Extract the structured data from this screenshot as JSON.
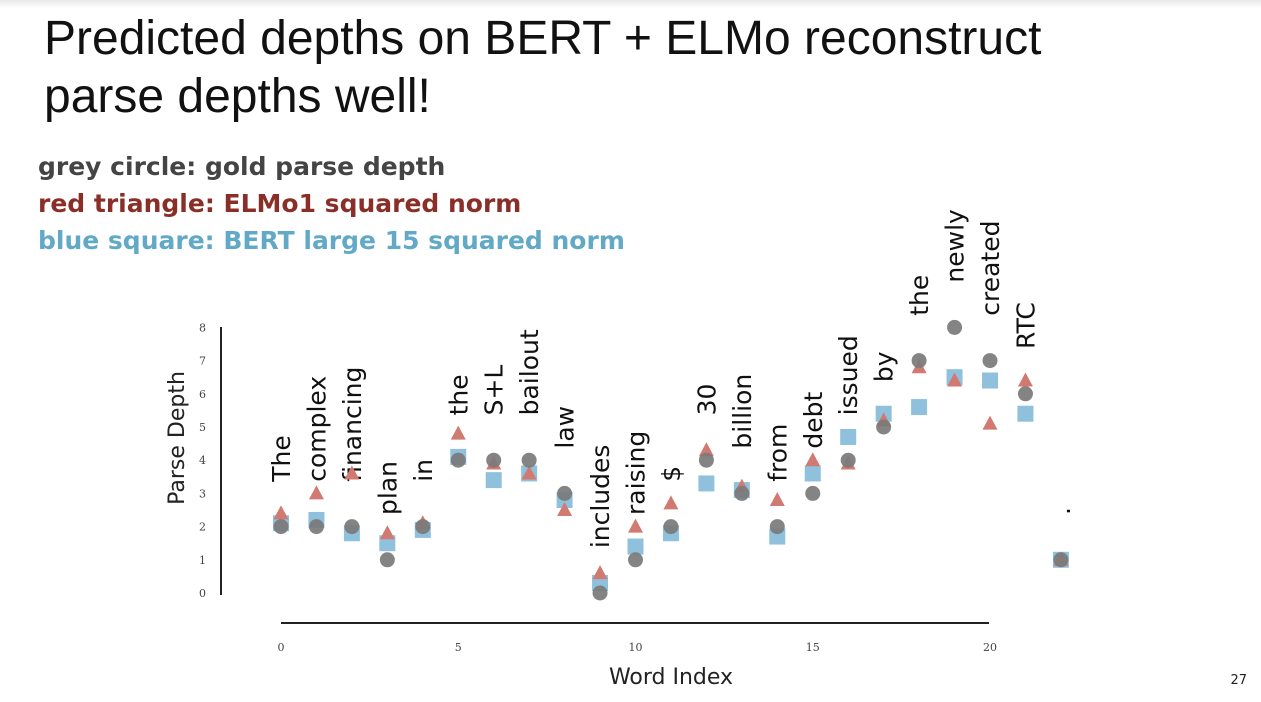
{
  "slide": {
    "title": "Predicted depths on BERT + ELMo reconstruct parse depths well!",
    "legend": {
      "grey": "grey circle: gold parse depth",
      "red": "red triangle: ELMo1 squared norm",
      "blue": "blue square: BERT large 15 squared norm"
    },
    "page_number": "27"
  },
  "colors": {
    "gold": "#7a7a7a",
    "elmo": "#d07a72",
    "bert": "#8fc0dc"
  },
  "chart_data": {
    "type": "scatter",
    "xlabel": "Word Index",
    "ylabel": "Parse Depth",
    "xticks": [
      0,
      5,
      10,
      15,
      20
    ],
    "yticks": [
      0,
      1,
      2,
      3,
      4,
      5,
      6,
      7,
      8
    ],
    "xlim": [
      0,
      22
    ],
    "ylim": [
      0,
      8
    ],
    "words": [
      "The",
      "complex",
      "financing",
      "plan",
      "in",
      "the",
      "S+L",
      "bailout",
      "law",
      "includes",
      "raising",
      "$",
      "30",
      "billion",
      "from",
      "debt",
      "issued",
      "by",
      "the",
      "newly",
      "created",
      "RTC",
      "."
    ],
    "series": [
      {
        "name": "gold parse depth",
        "marker": "circle",
        "values": [
          2,
          2,
          2,
          1,
          2,
          4,
          4,
          4,
          3,
          0,
          1,
          2,
          4,
          3,
          2,
          3,
          4,
          5,
          7,
          8,
          7,
          6,
          1
        ]
      },
      {
        "name": "ELMo1 squared norm",
        "marker": "triangle",
        "values": [
          2.4,
          3.0,
          3.6,
          1.8,
          2.1,
          4.8,
          3.9,
          3.6,
          2.5,
          0.6,
          2.0,
          2.7,
          4.3,
          3.2,
          2.8,
          4.0,
          3.9,
          5.2,
          6.8,
          6.4,
          5.1,
          6.4,
          1.0
        ]
      },
      {
        "name": "BERT large 15 squared norm",
        "marker": "square",
        "values": [
          2.1,
          2.2,
          1.8,
          1.5,
          1.9,
          4.1,
          3.4,
          3.6,
          2.8,
          0.3,
          1.4,
          1.8,
          3.3,
          3.1,
          1.7,
          3.6,
          4.7,
          5.4,
          5.6,
          6.5,
          6.4,
          5.4,
          1.0
        ]
      }
    ]
  }
}
